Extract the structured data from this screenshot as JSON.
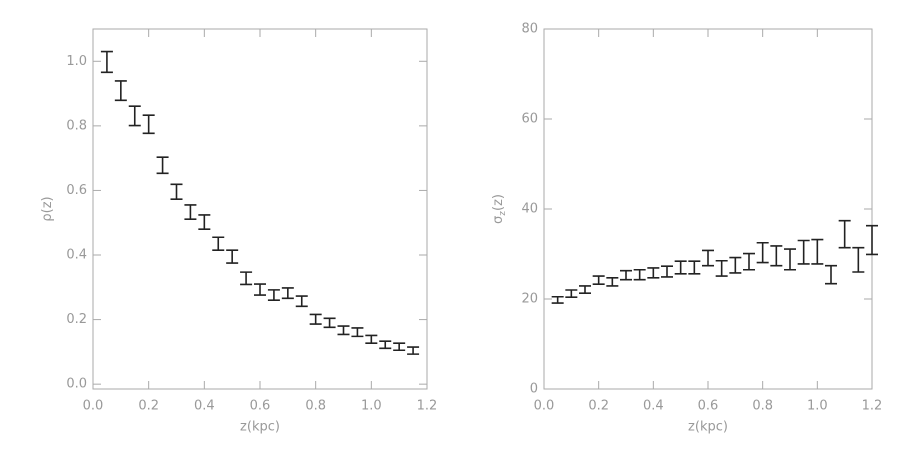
{
  "chart_data": [
    {
      "type": "errorbar",
      "xlabel": "z(kpc)",
      "ylabel": {
        "symbol": "ρ",
        "rest": "(z)"
      },
      "xlim": [
        0,
        1.2
      ],
      "ylim": [
        -0.015,
        1.1
      ],
      "xticks": [
        {
          "value": 0,
          "label": "0.0"
        },
        {
          "value": 0.2,
          "label": "0.2"
        },
        {
          "value": 0.4,
          "label": "0.4"
        },
        {
          "value": 0.6,
          "label": "0.6"
        },
        {
          "value": 0.8,
          "label": "0.8"
        },
        {
          "value": 1.0,
          "label": "1.0"
        },
        {
          "value": 1.2,
          "label": "1.2"
        }
      ],
      "yticks": [
        {
          "value": 0,
          "label": "0.0"
        },
        {
          "value": 0.2,
          "label": "0.2"
        },
        {
          "value": 0.4,
          "label": "0.4"
        },
        {
          "value": 0.6,
          "label": "0.6"
        },
        {
          "value": 0.8,
          "label": "0.8"
        },
        {
          "value": 1.0,
          "label": "1.0"
        }
      ],
      "x": [
        0.05,
        0.1,
        0.15,
        0.2,
        0.25,
        0.3,
        0.35,
        0.4,
        0.45,
        0.5,
        0.55,
        0.6,
        0.65,
        0.7,
        0.75,
        0.8,
        0.85,
        0.9,
        0.95,
        1.0,
        1.05,
        1.1,
        1.15
      ],
      "values": [
        0.998,
        0.909,
        0.831,
        0.805,
        0.678,
        0.596,
        0.533,
        0.502,
        0.435,
        0.395,
        0.328,
        0.293,
        0.276,
        0.282,
        0.257,
        0.201,
        0.19,
        0.167,
        0.161,
        0.139,
        0.122,
        0.116,
        0.104
      ],
      "errors": [
        0.032,
        0.03,
        0.03,
        0.028,
        0.025,
        0.023,
        0.022,
        0.022,
        0.02,
        0.02,
        0.019,
        0.017,
        0.016,
        0.016,
        0.016,
        0.015,
        0.014,
        0.013,
        0.013,
        0.012,
        0.011,
        0.011,
        0.011
      ],
      "color": "#222222"
    },
    {
      "type": "errorbar",
      "xlabel": "z(kpc)",
      "ylabel": {
        "symbol": "σ",
        "subscript": "z",
        "rest": "(z)"
      },
      "xlim": [
        0,
        1.2
      ],
      "ylim": [
        0,
        80
      ],
      "xticks": [
        {
          "value": 0,
          "label": "0.0"
        },
        {
          "value": 0.2,
          "label": "0.2"
        },
        {
          "value": 0.4,
          "label": "0.4"
        },
        {
          "value": 0.6,
          "label": "0.6"
        },
        {
          "value": 0.8,
          "label": "0.8"
        },
        {
          "value": 1.0,
          "label": "1.0"
        },
        {
          "value": 1.2,
          "label": "1.2"
        }
      ],
      "yticks": [
        0,
        20,
        40,
        60,
        80
      ],
      "x": [
        0.05,
        0.1,
        0.15,
        0.2,
        0.25,
        0.3,
        0.35,
        0.4,
        0.45,
        0.5,
        0.55,
        0.6,
        0.65,
        0.7,
        0.75,
        0.8,
        0.85,
        0.9,
        0.95,
        1.0,
        1.05,
        1.1,
        1.15,
        1.2
      ],
      "values": [
        19.8,
        21.2,
        22.1,
        24.2,
        23.8,
        25.3,
        25.4,
        25.8,
        26.1,
        27.0,
        27.0,
        29.1,
        26.8,
        27.5,
        28.3,
        30.3,
        29.6,
        28.8,
        30.4,
        30.5,
        25.4,
        34.4,
        28.7,
        33.1
      ],
      "errors": [
        0.7,
        0.8,
        0.8,
        0.9,
        0.9,
        1.0,
        1.1,
        1.1,
        1.2,
        1.4,
        1.4,
        1.7,
        1.7,
        1.7,
        1.8,
        2.2,
        2.2,
        2.3,
        2.6,
        2.7,
        2.0,
        3.0,
        2.7,
        3.2
      ],
      "color": "#222222"
    }
  ]
}
